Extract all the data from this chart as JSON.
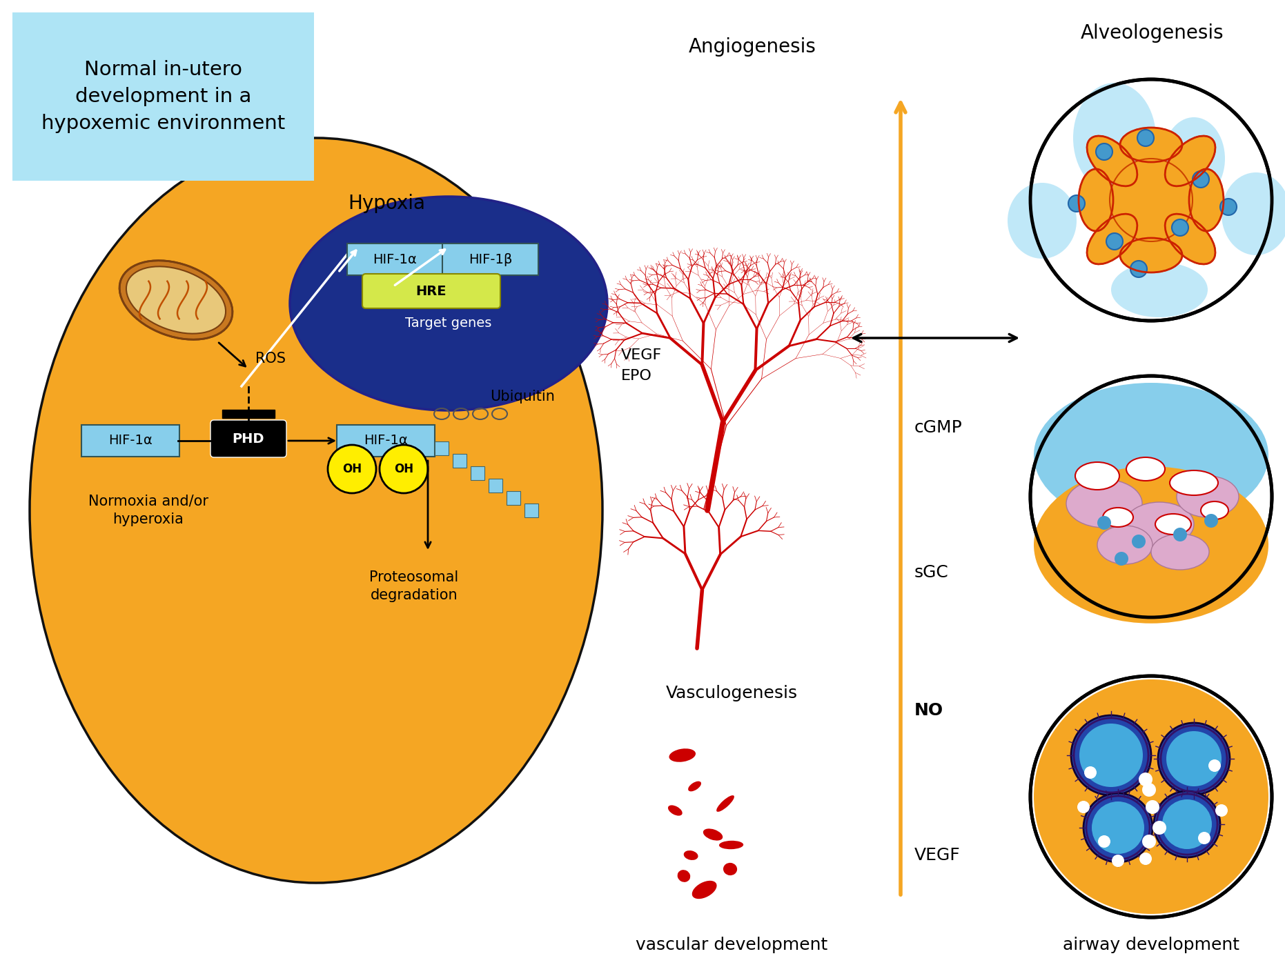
{
  "bg_color": "#ffffff",
  "cell_color": "#F5A623",
  "label_box_color": "#aee4f5",
  "label_box_text": "Normal in-utero\ndevelopment in a\nhypoxemic environment",
  "nucleus_color": "#1a2e8a",
  "light_blue": "#87CEEB",
  "yellow_color": "#FFEE00",
  "red_color": "#CC0000",
  "orange_arrow": "#F5A623",
  "hre_color": "#d4e84a",
  "hypoxia_label": "Hypoxia",
  "ros_label": "ROS",
  "hif1a_label": "HIF-1α",
  "hif1b_label": "HIF-1β",
  "hre_label": "HRE",
  "target_genes_label": "Target genes",
  "vegf_epo_label": "VEGF\nEPO",
  "phd_label": "PHD",
  "oh_label": "OH",
  "ubiquitin_label": "Ubiquitin",
  "normoxia_label": "Normoxia and/or\nhyperoxia",
  "proteasomal_label": "Proteosomal\ndegradation",
  "angiogenesis_label": "Angiogenesis",
  "alveologenesis_label": "Alveologenesis",
  "cgmp_label": "cGMP",
  "sgc_label": "sGC",
  "no_label": "NO",
  "vegf_label": "VEGF",
  "vasculogenesis_label": "Vasculogenesis",
  "vascular_dev_label": "vascular development",
  "airway_dev_label": "airway development"
}
